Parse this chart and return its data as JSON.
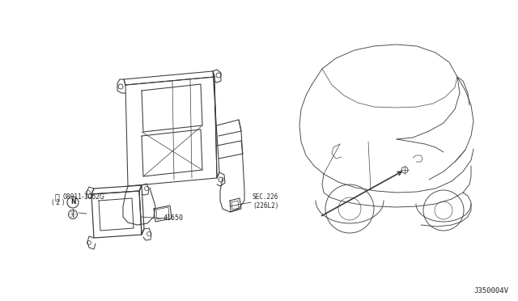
{
  "bg_color": "#ffffff",
  "line_color": "#3a3a3a",
  "text_color": "#222222",
  "diagram_id": "J350004V",
  "label_41650": "41650",
  "label_bolt": "ⓝ08911-1062G\n ( 2 )",
  "label_sec": "SEC.226\n(226L2)",
  "figsize": [
    6.4,
    3.72
  ],
  "dpi": 100
}
